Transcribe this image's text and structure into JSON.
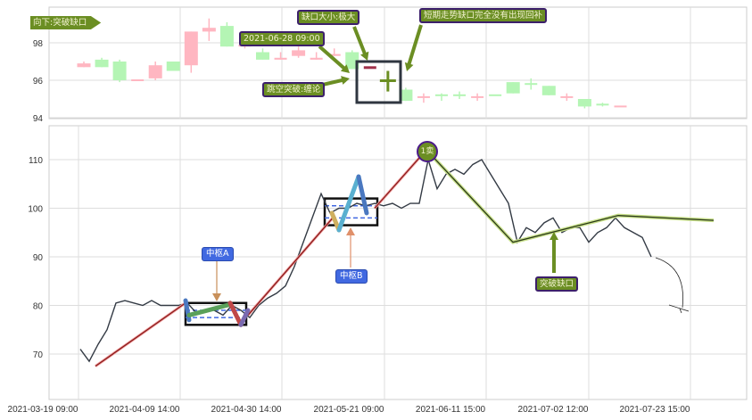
{
  "chart_data": [
    {
      "type": "candlestick",
      "panel": "top",
      "ylim": [
        94,
        99.4
      ],
      "yticks": [
        94,
        96,
        98
      ],
      "grid": true,
      "candles": [
        {
          "o": 96.7,
          "c": 96.9,
          "h": 97.0,
          "l": 96.7,
          "dir": "up"
        },
        {
          "o": 97.1,
          "c": 96.7,
          "h": 97.2,
          "l": 96.7,
          "dir": "down"
        },
        {
          "o": 97.0,
          "c": 96.0,
          "h": 97.1,
          "l": 95.9,
          "dir": "down"
        },
        {
          "o": 96.0,
          "c": 96.0,
          "h": 96.0,
          "l": 96.0,
          "dir": "up"
        },
        {
          "o": 96.1,
          "c": 96.8,
          "h": 97.0,
          "l": 96.0,
          "dir": "up"
        },
        {
          "o": 97.0,
          "c": 96.5,
          "h": 97.0,
          "l": 96.5,
          "dir": "down"
        },
        {
          "o": 96.8,
          "c": 98.6,
          "h": 98.6,
          "l": 96.4,
          "dir": "up"
        },
        {
          "o": 98.6,
          "c": 98.8,
          "h": 99.3,
          "l": 98.1,
          "dir": "up"
        },
        {
          "o": 98.9,
          "c": 97.8,
          "h": 99.1,
          "l": 97.8,
          "dir": "down"
        },
        {
          "o": 97.8,
          "c": 97.9,
          "h": 98.0,
          "l": 97.7,
          "dir": "up"
        },
        {
          "o": 97.5,
          "c": 97.1,
          "h": 97.7,
          "l": 97.1,
          "dir": "down"
        },
        {
          "o": 97.1,
          "c": 97.2,
          "h": 97.5,
          "l": 97.1,
          "dir": "up"
        },
        {
          "o": 97.3,
          "c": 97.6,
          "h": 97.8,
          "l": 97.2,
          "dir": "up"
        },
        {
          "o": 97.1,
          "c": 97.2,
          "h": 97.5,
          "l": 97.1,
          "dir": "up"
        },
        {
          "o": 97.3,
          "c": 97.4,
          "h": 97.7,
          "l": 97.3,
          "dir": "up"
        },
        {
          "o": 97.5,
          "c": 96.6,
          "h": 97.6,
          "l": 96.6,
          "dir": "down"
        },
        {
          "o": 96.7,
          "c": 96.7,
          "h": 96.7,
          "l": 96.7,
          "dir": "up",
          "highlight": true
        },
        {
          "o": 96.0,
          "c": 96.0,
          "h": 96.5,
          "l": 95.4,
          "dir": "down",
          "highlight": true
        },
        {
          "o": 95.5,
          "c": 94.9,
          "h": 95.6,
          "l": 94.9,
          "dir": "down"
        },
        {
          "o": 95.1,
          "c": 95.1,
          "h": 95.3,
          "l": 94.8,
          "dir": "up"
        },
        {
          "o": 95.2,
          "c": 95.2,
          "h": 95.3,
          "l": 94.9,
          "dir": "down"
        },
        {
          "o": 95.2,
          "c": 95.2,
          "h": 95.4,
          "l": 95.0,
          "dir": "down"
        },
        {
          "o": 95.1,
          "c": 95.1,
          "h": 95.3,
          "l": 94.9,
          "dir": "up"
        },
        {
          "o": 95.2,
          "c": 95.2,
          "h": 95.2,
          "l": 95.2,
          "dir": "down"
        },
        {
          "o": 95.9,
          "c": 95.3,
          "h": 95.9,
          "l": 95.3,
          "dir": "down"
        },
        {
          "o": 95.8,
          "c": 95.8,
          "h": 96.1,
          "l": 95.5,
          "dir": "down"
        },
        {
          "o": 95.7,
          "c": 95.2,
          "h": 95.7,
          "l": 95.2,
          "dir": "down"
        },
        {
          "o": 95.1,
          "c": 95.1,
          "h": 95.3,
          "l": 94.9,
          "dir": "up"
        },
        {
          "o": 95.0,
          "c": 94.6,
          "h": 95.0,
          "l": 94.5,
          "dir": "down"
        },
        {
          "o": 94.7,
          "c": 94.7,
          "h": 94.8,
          "l": 94.6,
          "dir": "down"
        },
        {
          "o": 94.6,
          "c": 94.6,
          "h": 94.6,
          "l": 94.6,
          "dir": "up"
        }
      ],
      "annotations": {
        "direction_tag": "向下:突破缺口",
        "date_tag": "2021-06-28 09:00",
        "gap_size": "缺口大小:极大",
        "gap_type": "跳空突破:缠论",
        "note": "短期走势缺口完全没有出现回补"
      }
    },
    {
      "type": "line",
      "panel": "bottom",
      "ylim": [
        61,
        117
      ],
      "yticks": [
        70,
        80,
        90,
        100,
        110
      ],
      "grid": true,
      "xticks": [
        "2021-03-19 09:00",
        "2021-04-09 14:00",
        "2021-04-30 14:00",
        "2021-05-21 09:00",
        "2021-06-11 15:00",
        "2021-07-02 12:00",
        "2021-07-23 15:00"
      ],
      "values": [
        71,
        68.5,
        72,
        75,
        80.5,
        81,
        80.5,
        80,
        81,
        80,
        80,
        80,
        80.5,
        78.5,
        79,
        79,
        78,
        80,
        79,
        77.5,
        80,
        81.5,
        82.5,
        84,
        88,
        93,
        98,
        103,
        99,
        100,
        100,
        101,
        100.5,
        101,
        100.5,
        101,
        100,
        101,
        101,
        110,
        104,
        107,
        108,
        107,
        109,
        110,
        107,
        104,
        101,
        93,
        96,
        95,
        97,
        98,
        95,
        96,
        96,
        93,
        95,
        96,
        98,
        96,
        95,
        94,
        90
      ],
      "bi_up": [
        [
          1.7,
          67.5
        ],
        [
          11.8,
          80.5
        ]
      ],
      "bi_up2": [
        [
          18.8,
          78
        ],
        [
          28.3,
          98
        ]
      ],
      "bi_up3": [
        [
          33,
          100
        ],
        [
          38.8,
          112
        ]
      ],
      "bi_down": [
        [
          38.8,
          112
        ],
        [
          48.5,
          93
        ],
        [
          60.3,
          98.5
        ],
        [
          71,
          97.5
        ]
      ],
      "pivots": [
        {
          "label": "中枢A",
          "high": 80.5,
          "low": 76,
          "dash": [
            79,
            77.5
          ]
        },
        {
          "label": "中枢B",
          "high": 102,
          "low": 96.5,
          "dash": [
            100.5,
            98
          ]
        }
      ],
      "signals": {
        "sell1": "1卖",
        "gap": "突破缺口"
      }
    }
  ],
  "colors": {
    "up": "#ffb6c1",
    "down": "#b4f5b4",
    "label_fill": "#6b8e23",
    "label_border": "#3c1f6b",
    "pivot_label": "#4169e1",
    "bi_up": "#8b1a1a",
    "bi_down": "#2b3a1a"
  }
}
